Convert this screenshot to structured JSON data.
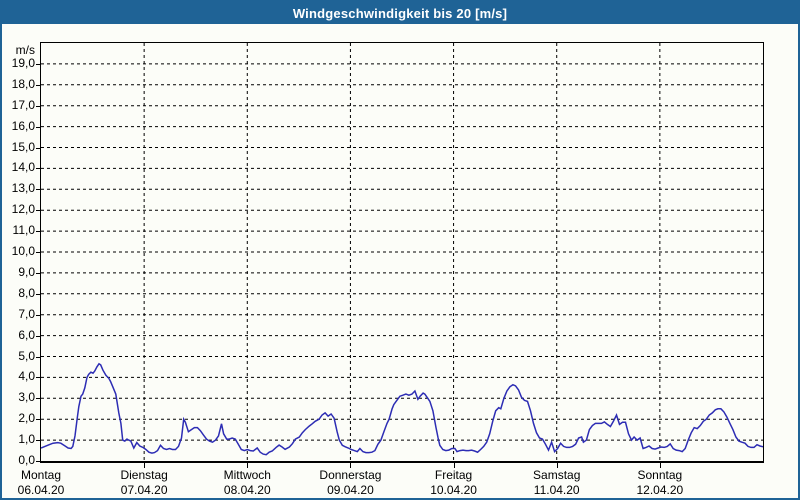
{
  "window": {
    "title": "Windgeschwindigkeit bis 20 [m/s]"
  },
  "colors": {
    "titlebar_bg": "#1f6396",
    "titlebar_text": "#ffffff",
    "frame_border": "#1f6396",
    "background": "#fcfdf8",
    "plot_border": "#000000",
    "grid": "#000000",
    "line": "#2d2db4",
    "label_text": "#000000"
  },
  "chart_data": {
    "type": "line",
    "title": "Windgeschwindigkeit bis 20 [m/s]",
    "unit": "m/s",
    "ylabel": "m/s",
    "ylim": [
      0,
      20
    ],
    "y_tick_step": 1,
    "y_tick_labels": [
      "0,0",
      "1,0",
      "2,0",
      "3,0",
      "4,0",
      "5,0",
      "6,0",
      "7,0",
      "8,0",
      "9,0",
      "10,0",
      "11,0",
      "12,0",
      "13,0",
      "14,0",
      "15,0",
      "16,0",
      "17,0",
      "18,0",
      "19,0"
    ],
    "grid": {
      "style": "dashed",
      "horizontal_every": 1,
      "vertical_every_hours": 24
    },
    "x_axis": {
      "range_hours": [
        0,
        168
      ],
      "days": [
        {
          "name": "Montag",
          "date": "06.04.20"
        },
        {
          "name": "Dienstag",
          "date": "07.04.20"
        },
        {
          "name": "Mittwoch",
          "date": "08.04.20"
        },
        {
          "name": "Donnerstag",
          "date": "09.04.20"
        },
        {
          "name": "Freitag",
          "date": "10.04.20"
        },
        {
          "name": "Samstag",
          "date": "11.04.20"
        },
        {
          "name": "Sonntag",
          "date": "12.04.20"
        }
      ]
    },
    "series": [
      {
        "name": "Windgeschwindigkeit",
        "color": "#2d2db4",
        "points": [
          [
            0,
            0.62
          ],
          [
            0.9,
            0.7
          ],
          [
            1.9,
            0.78
          ],
          [
            2.8,
            0.85
          ],
          [
            3.9,
            0.88
          ],
          [
            4.6,
            0.85
          ],
          [
            5.6,
            0.72
          ],
          [
            6.3,
            0.62
          ],
          [
            7,
            0.6
          ],
          [
            7.4,
            0.7
          ],
          [
            7.9,
            1.2
          ],
          [
            8.4,
            2.0
          ],
          [
            8.8,
            2.6
          ],
          [
            9.3,
            3.1
          ],
          [
            9.7,
            3.2
          ],
          [
            10.2,
            3.5
          ],
          [
            10.7,
            4.0
          ],
          [
            11.1,
            4.15
          ],
          [
            11.6,
            4.25
          ],
          [
            12.1,
            4.2
          ],
          [
            12.5,
            4.3
          ],
          [
            13,
            4.5
          ],
          [
            13.5,
            4.65
          ],
          [
            13.9,
            4.6
          ],
          [
            14.4,
            4.35
          ],
          [
            15.1,
            4.1
          ],
          [
            15.8,
            3.95
          ],
          [
            16.2,
            3.8
          ],
          [
            16.7,
            3.55
          ],
          [
            17.4,
            3.2
          ],
          [
            18.1,
            2.3
          ],
          [
            18.6,
            1.8
          ],
          [
            19,
            1.0
          ],
          [
            19.5,
            0.95
          ],
          [
            20,
            1.05
          ],
          [
            20.4,
            1.0
          ],
          [
            20.9,
            0.95
          ],
          [
            21.6,
            0.62
          ],
          [
            22.3,
            0.88
          ],
          [
            23,
            0.72
          ],
          [
            23.7,
            0.65
          ],
          [
            24.4,
            0.55
          ],
          [
            25.1,
            0.42
          ],
          [
            25.8,
            0.38
          ],
          [
            26.4,
            0.4
          ],
          [
            27.1,
            0.5
          ],
          [
            27.8,
            0.75
          ],
          [
            28.5,
            0.6
          ],
          [
            29.2,
            0.55
          ],
          [
            29.9,
            0.6
          ],
          [
            30.6,
            0.55
          ],
          [
            31.3,
            0.55
          ],
          [
            32,
            0.7
          ],
          [
            32.7,
            1.1
          ],
          [
            33.2,
            2.0
          ],
          [
            33.6,
            1.85
          ],
          [
            34.3,
            1.4
          ],
          [
            35,
            1.5
          ],
          [
            35.7,
            1.6
          ],
          [
            36.4,
            1.6
          ],
          [
            37.1,
            1.45
          ],
          [
            37.8,
            1.25
          ],
          [
            38.5,
            1.05
          ],
          [
            39.2,
            0.95
          ],
          [
            39.9,
            0.9
          ],
          [
            40.6,
            1.0
          ],
          [
            41.3,
            1.2
          ],
          [
            42,
            1.78
          ],
          [
            42.5,
            1.3
          ],
          [
            43.2,
            1.05
          ],
          [
            43.8,
            1.05
          ],
          [
            44.5,
            1.1
          ],
          [
            45.2,
            1.05
          ],
          [
            45.9,
            0.8
          ],
          [
            46.6,
            0.55
          ],
          [
            47.3,
            0.5
          ],
          [
            48,
            0.55
          ],
          [
            48.7,
            0.5
          ],
          [
            49.4,
            0.48
          ],
          [
            50.3,
            0.62
          ],
          [
            51,
            0.42
          ],
          [
            51.7,
            0.33
          ],
          [
            52.4,
            0.3
          ],
          [
            53.1,
            0.42
          ],
          [
            53.8,
            0.48
          ],
          [
            54.7,
            0.65
          ],
          [
            55.4,
            0.76
          ],
          [
            56.1,
            0.67
          ],
          [
            56.8,
            0.56
          ],
          [
            57.8,
            0.67
          ],
          [
            58.5,
            0.83
          ],
          [
            59.2,
            1.05
          ],
          [
            60.1,
            1.15
          ],
          [
            60.8,
            1.35
          ],
          [
            61.5,
            1.5
          ],
          [
            62.4,
            1.67
          ],
          [
            63.1,
            1.78
          ],
          [
            63.8,
            1.9
          ],
          [
            64.7,
            2.0
          ],
          [
            65.4,
            2.2
          ],
          [
            66.1,
            2.3
          ],
          [
            66.8,
            2.15
          ],
          [
            67.5,
            2.25
          ],
          [
            68.2,
            2.05
          ],
          [
            68.9,
            1.4
          ],
          [
            69.4,
            1.0
          ],
          [
            70.1,
            0.75
          ],
          [
            70.8,
            0.68
          ],
          [
            71.5,
            0.62
          ],
          [
            72.2,
            0.55
          ],
          [
            72.9,
            0.5
          ],
          [
            73.6,
            0.45
          ],
          [
            74.2,
            0.6
          ],
          [
            74.9,
            0.45
          ],
          [
            75.6,
            0.4
          ],
          [
            76.3,
            0.4
          ],
          [
            77,
            0.42
          ],
          [
            77.7,
            0.5
          ],
          [
            78.4,
            0.8
          ],
          [
            79.1,
            1.0
          ],
          [
            79.8,
            1.4
          ],
          [
            80.5,
            1.8
          ],
          [
            81,
            2.0
          ],
          [
            81.7,
            2.5
          ],
          [
            82.1,
            2.7
          ],
          [
            82.8,
            2.9
          ],
          [
            83.5,
            3.1
          ],
          [
            84.2,
            3.15
          ],
          [
            84.9,
            3.2
          ],
          [
            85.6,
            3.15
          ],
          [
            86.3,
            3.2
          ],
          [
            87,
            3.35
          ],
          [
            87.7,
            2.95
          ],
          [
            88.2,
            3.1
          ],
          [
            88.9,
            3.25
          ],
          [
            89.3,
            3.2
          ],
          [
            90,
            3.0
          ],
          [
            90.5,
            2.85
          ],
          [
            91.2,
            2.4
          ],
          [
            91.9,
            1.6
          ],
          [
            92.4,
            1.1
          ],
          [
            92.8,
            0.75
          ],
          [
            93.5,
            0.55
          ],
          [
            94.2,
            0.5
          ],
          [
            94.9,
            0.52
          ],
          [
            95.6,
            0.6
          ],
          [
            96.3,
            0.6
          ],
          [
            96.8,
            0.45
          ],
          [
            97.5,
            0.5
          ],
          [
            98.2,
            0.52
          ],
          [
            98.9,
            0.5
          ],
          [
            99.5,
            0.5
          ],
          [
            100.2,
            0.52
          ],
          [
            100.9,
            0.48
          ],
          [
            101.6,
            0.42
          ],
          [
            102.3,
            0.55
          ],
          [
            103,
            0.7
          ],
          [
            103.7,
            0.9
          ],
          [
            104.4,
            1.3
          ],
          [
            105.1,
            1.9
          ],
          [
            105.8,
            2.4
          ],
          [
            106.5,
            2.55
          ],
          [
            107,
            2.5
          ],
          [
            107.7,
            3.0
          ],
          [
            108.4,
            3.35
          ],
          [
            109.1,
            3.55
          ],
          [
            109.8,
            3.65
          ],
          [
            110.4,
            3.6
          ],
          [
            111.1,
            3.4
          ],
          [
            111.8,
            3.05
          ],
          [
            112.5,
            2.9
          ],
          [
            113.2,
            2.85
          ],
          [
            113.9,
            2.4
          ],
          [
            114.6,
            1.8
          ],
          [
            115.3,
            1.35
          ],
          [
            116,
            1.1
          ],
          [
            116.7,
            1.05
          ],
          [
            117.4,
            0.8
          ],
          [
            118.1,
            0.52
          ],
          [
            118.8,
            0.9
          ],
          [
            119.5,
            0.45
          ],
          [
            120.2,
            0.6
          ],
          [
            120.9,
            0.85
          ],
          [
            121.6,
            0.7
          ],
          [
            122.3,
            0.65
          ],
          [
            123,
            0.65
          ],
          [
            123.7,
            0.7
          ],
          [
            124.4,
            0.8
          ],
          [
            125.1,
            1.1
          ],
          [
            125.8,
            1.15
          ],
          [
            126.2,
            0.9
          ],
          [
            126.9,
            1.0
          ],
          [
            127.6,
            1.5
          ],
          [
            128.3,
            1.7
          ],
          [
            129,
            1.8
          ],
          [
            129.7,
            1.8
          ],
          [
            130.4,
            1.8
          ],
          [
            131.1,
            1.87
          ],
          [
            131.8,
            1.75
          ],
          [
            132.5,
            1.65
          ],
          [
            133.2,
            1.9
          ],
          [
            133.9,
            2.2
          ],
          [
            134.6,
            1.75
          ],
          [
            135.3,
            1.85
          ],
          [
            136,
            1.85
          ],
          [
            136.7,
            1.3
          ],
          [
            137.4,
            1.0
          ],
          [
            138,
            1.15
          ],
          [
            138.7,
            1.0
          ],
          [
            139.4,
            1.1
          ],
          [
            140.1,
            0.6
          ],
          [
            140.8,
            0.65
          ],
          [
            141.5,
            0.72
          ],
          [
            142.2,
            0.6
          ],
          [
            142.9,
            0.57
          ],
          [
            143.6,
            0.62
          ],
          [
            144.3,
            0.67
          ],
          [
            145,
            0.65
          ],
          [
            145.7,
            0.7
          ],
          [
            146.4,
            0.82
          ],
          [
            147.1,
            0.6
          ],
          [
            147.8,
            0.52
          ],
          [
            148.5,
            0.5
          ],
          [
            149.2,
            0.45
          ],
          [
            149.9,
            0.6
          ],
          [
            150.6,
            1.0
          ],
          [
            151.3,
            1.35
          ],
          [
            152,
            1.6
          ],
          [
            152.7,
            1.55
          ],
          [
            153.4,
            1.7
          ],
          [
            154.1,
            1.9
          ],
          [
            154.8,
            2.0
          ],
          [
            155.5,
            2.2
          ],
          [
            156.2,
            2.3
          ],
          [
            156.9,
            2.45
          ],
          [
            157.5,
            2.5
          ],
          [
            158.2,
            2.5
          ],
          [
            158.9,
            2.35
          ],
          [
            159.6,
            2.1
          ],
          [
            160.3,
            1.8
          ],
          [
            161,
            1.5
          ],
          [
            161.7,
            1.15
          ],
          [
            162.4,
            0.95
          ],
          [
            163.1,
            0.9
          ],
          [
            163.8,
            0.85
          ],
          [
            164.5,
            0.7
          ],
          [
            165.2,
            0.65
          ],
          [
            165.9,
            0.65
          ],
          [
            166.6,
            0.78
          ],
          [
            167.3,
            0.72
          ],
          [
            168,
            0.68
          ]
        ]
      }
    ]
  }
}
